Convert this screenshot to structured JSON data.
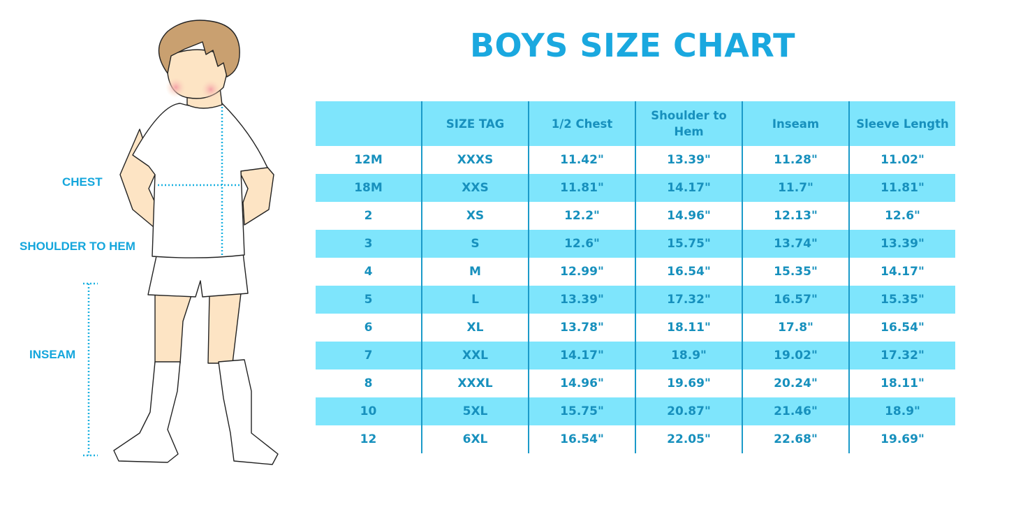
{
  "title": "BOYS SIZE CHART",
  "figure_labels": {
    "chest": "CHEST",
    "shoulder_to_hem": "SHOULDER TO HEM",
    "inseam": "INSEAM"
  },
  "colors": {
    "accent": "#1aa8df",
    "header_bg": "#7ee5fc",
    "text": "#1790bd"
  },
  "table": {
    "headers": [
      "",
      "SIZE TAG",
      "1/2 Chest",
      "Shoulder to Hem",
      "Inseam",
      "Sleeve Length"
    ],
    "rows": [
      [
        "12M",
        "XXXS",
        "11.42\"",
        "13.39\"",
        "11.28\"",
        "11.02\""
      ],
      [
        "18M",
        "XXS",
        "11.81\"",
        "14.17\"",
        "11.7\"",
        "11.81\""
      ],
      [
        "2",
        "XS",
        "12.2\"",
        "14.96\"",
        "12.13\"",
        "12.6\""
      ],
      [
        "3",
        "S",
        "12.6\"",
        "15.75\"",
        "13.74\"",
        "13.39\""
      ],
      [
        "4",
        "M",
        "12.99\"",
        "16.54\"",
        "15.35\"",
        "14.17\""
      ],
      [
        "5",
        "L",
        "13.39\"",
        "17.32\"",
        "16.57\"",
        "15.35\""
      ],
      [
        "6",
        "XL",
        "13.78\"",
        "18.11\"",
        "17.8\"",
        "16.54\""
      ],
      [
        "7",
        "XXL",
        "14.17\"",
        "18.9\"",
        "19.02\"",
        "17.32\""
      ],
      [
        "8",
        "XXXL",
        "14.96\"",
        "19.69\"",
        "20.24\"",
        "18.11\""
      ],
      [
        "10",
        "5XL",
        "15.75\"",
        "20.87\"",
        "21.46\"",
        "18.9\""
      ],
      [
        "12",
        "6XL",
        "16.54\"",
        "22.05\"",
        "22.68\"",
        "19.69\""
      ]
    ]
  }
}
